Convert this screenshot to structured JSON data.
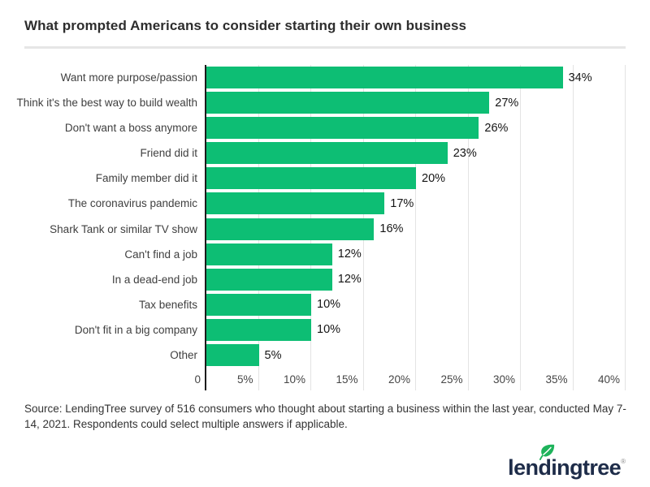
{
  "header": {
    "title": "What prompted Americans to consider starting their own business"
  },
  "chart_data": {
    "type": "bar",
    "orientation": "horizontal",
    "title": "What prompted Americans to consider starting their own business",
    "categories": [
      "Want more purpose/passion",
      "Think it's the best way to build wealth",
      "Don't want a boss anymore",
      "Friend did it",
      "Family member did it",
      "The coronavirus pandemic",
      "Shark Tank or similar TV show",
      "Can't find a job",
      "In a dead-end job",
      "Tax benefits",
      "Don't fit in a big company",
      "Other"
    ],
    "values": [
      34,
      27,
      26,
      23,
      20,
      17,
      16,
      12,
      12,
      10,
      10,
      5
    ],
    "value_labels": [
      "34%",
      "27%",
      "26%",
      "23%",
      "20%",
      "17%",
      "16%",
      "12%",
      "12%",
      "10%",
      "10%",
      "5%"
    ],
    "x_ticks": [
      "0",
      "5%",
      "10%",
      "15%",
      "20%",
      "25%",
      "30%",
      "35%",
      "40%"
    ],
    "xlim": [
      0,
      40
    ],
    "xlabel": "",
    "ylabel": "",
    "grid": true,
    "legend_position": "none",
    "bar_color": "#0dbe74",
    "axis_color": "#1c1c1c",
    "gridline_color": "#e3e3e3"
  },
  "footer": {
    "source": "Source: LendingTree survey of 516 consumers who thought about starting a business within the last year, conducted May 7-14, 2021. Respondents could select multiple answers if applicable."
  },
  "logo": {
    "text": "lendingtree",
    "mark": "®",
    "leaf_color": "#1eb35b",
    "text_color": "#1e2c49"
  }
}
